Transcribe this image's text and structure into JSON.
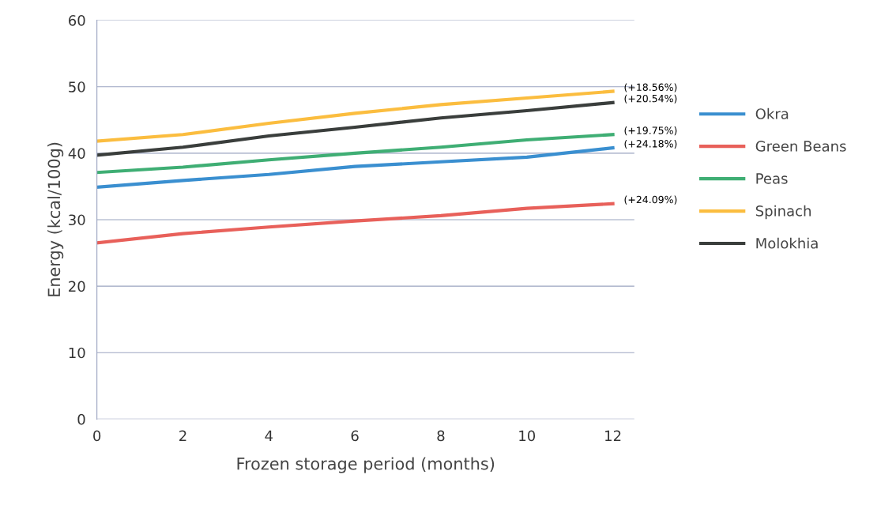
{
  "chart_data": {
    "type": "line",
    "xlabel": "Frozen storage period (months)",
    "ylabel": "Energy (kcal/100g)",
    "x": [
      0,
      2,
      4,
      6,
      8,
      10,
      12
    ],
    "series": [
      {
        "name": "Okra",
        "color": "#3a8fd0",
        "values": [
          34.9,
          35.9,
          36.8,
          38.0,
          38.7,
          39.4,
          40.8
        ]
      },
      {
        "name": "Green Beans",
        "color": "#e8605a",
        "values": [
          26.5,
          27.9,
          28.9,
          29.8,
          30.6,
          31.7,
          32.4
        ]
      },
      {
        "name": "Peas",
        "color": "#3fae74",
        "values": [
          37.1,
          37.9,
          39.0,
          40.0,
          40.9,
          42.0,
          42.8
        ]
      },
      {
        "name": "Spinach",
        "color": "#fbbd3f",
        "values": [
          41.8,
          42.8,
          44.5,
          46.0,
          47.3,
          48.3,
          49.3
        ]
      },
      {
        "name": "Molokhia",
        "color": "#3a3e3c",
        "values": [
          39.7,
          40.9,
          42.6,
          43.9,
          45.3,
          46.4,
          47.6
        ]
      }
    ],
    "annotations": [
      "(+18.56%)",
      "(+20.54%)",
      "(+19.75%)",
      "(+24.18%)",
      "(+24.09%)"
    ],
    "xlim": [
      0,
      12.5
    ],
    "xticks": [
      0,
      2,
      4,
      6,
      8,
      10,
      12
    ],
    "ylim": [
      0,
      60
    ],
    "yticks": [
      0,
      10,
      20,
      30,
      40,
      50,
      60
    ],
    "grid": "y",
    "legend": "right",
    "marker": "none",
    "line_style": "solid"
  }
}
